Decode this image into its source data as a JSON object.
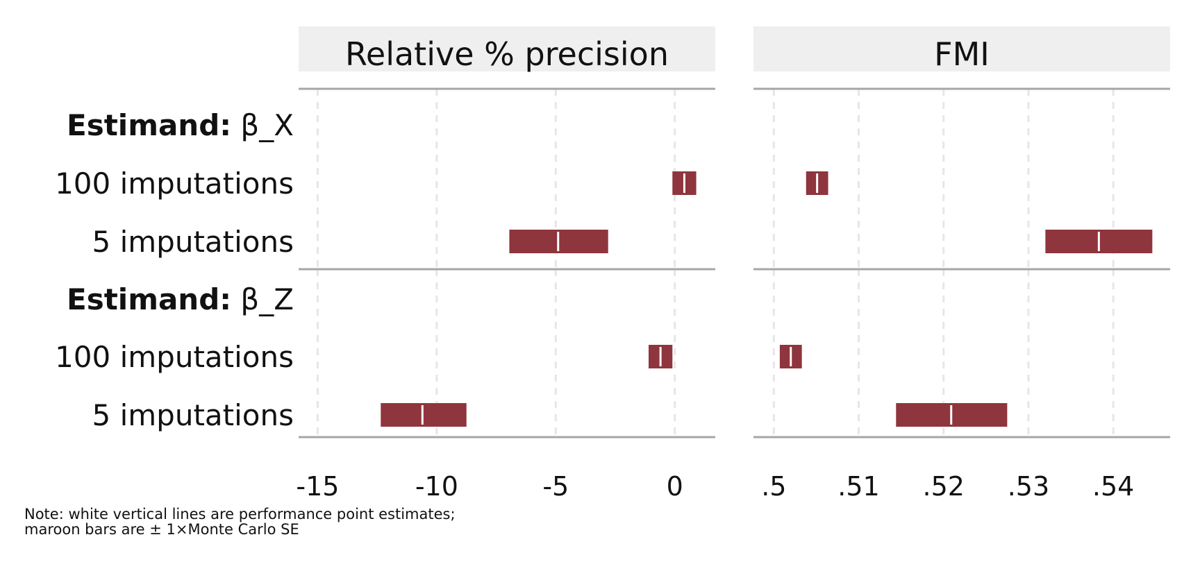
{
  "chart_data": {
    "type": "forest",
    "row_groups": [
      {
        "header_prefix": "Estimand:",
        "header_name": "β_X",
        "rows": [
          {
            "label": "100 imputations"
          },
          {
            "label": "5 imputations"
          }
        ]
      },
      {
        "header_prefix": "Estimand:",
        "header_name": "β_Z",
        "rows": [
          {
            "label": "100 imputations"
          },
          {
            "label": "5 imputations"
          }
        ]
      }
    ],
    "panels": [
      {
        "title": "Relative % precision",
        "xlim": [
          -15.8,
          1.7
        ],
        "ticks": [
          -15,
          -10,
          -5,
          0
        ],
        "tick_labels": [
          "-15",
          "-10",
          "-5",
          "0"
        ],
        "estimates": [
          [
            {
              "estimate": 0.4,
              "lower": -0.1,
              "upper": 0.9
            },
            {
              "estimate": -4.9,
              "lower": -6.95,
              "upper": -2.8
            }
          ],
          [
            {
              "estimate": -0.6,
              "lower": -1.1,
              "upper": -0.1
            },
            {
              "estimate": -10.6,
              "lower": -12.35,
              "upper": -8.75
            }
          ]
        ]
      },
      {
        "title": "FMI",
        "xlim": [
          0.4976,
          0.5467
        ],
        "ticks": [
          0.5,
          0.51,
          0.52,
          0.53,
          0.54
        ],
        "tick_labels": [
          ".5",
          ".51",
          ".52",
          ".53",
          ".54"
        ],
        "estimates": [
          [
            {
              "estimate": 0.5051,
              "lower": 0.5038,
              "upper": 0.5064
            },
            {
              "estimate": 0.5383,
              "lower": 0.532,
              "upper": 0.5446
            }
          ],
          [
            {
              "estimate": 0.502,
              "lower": 0.5007,
              "upper": 0.5033
            },
            {
              "estimate": 0.5209,
              "lower": 0.5144,
              "upper": 0.5275
            }
          ]
        ]
      }
    ],
    "bar_color": "#8f353d",
    "estimate_line_color": "#ffffff",
    "strip_color": "#efefef",
    "grid": true,
    "note": [
      "Note: white vertical lines are performance point estimates;",
      "maroon bars are ± 1×Monte Carlo SE"
    ]
  }
}
